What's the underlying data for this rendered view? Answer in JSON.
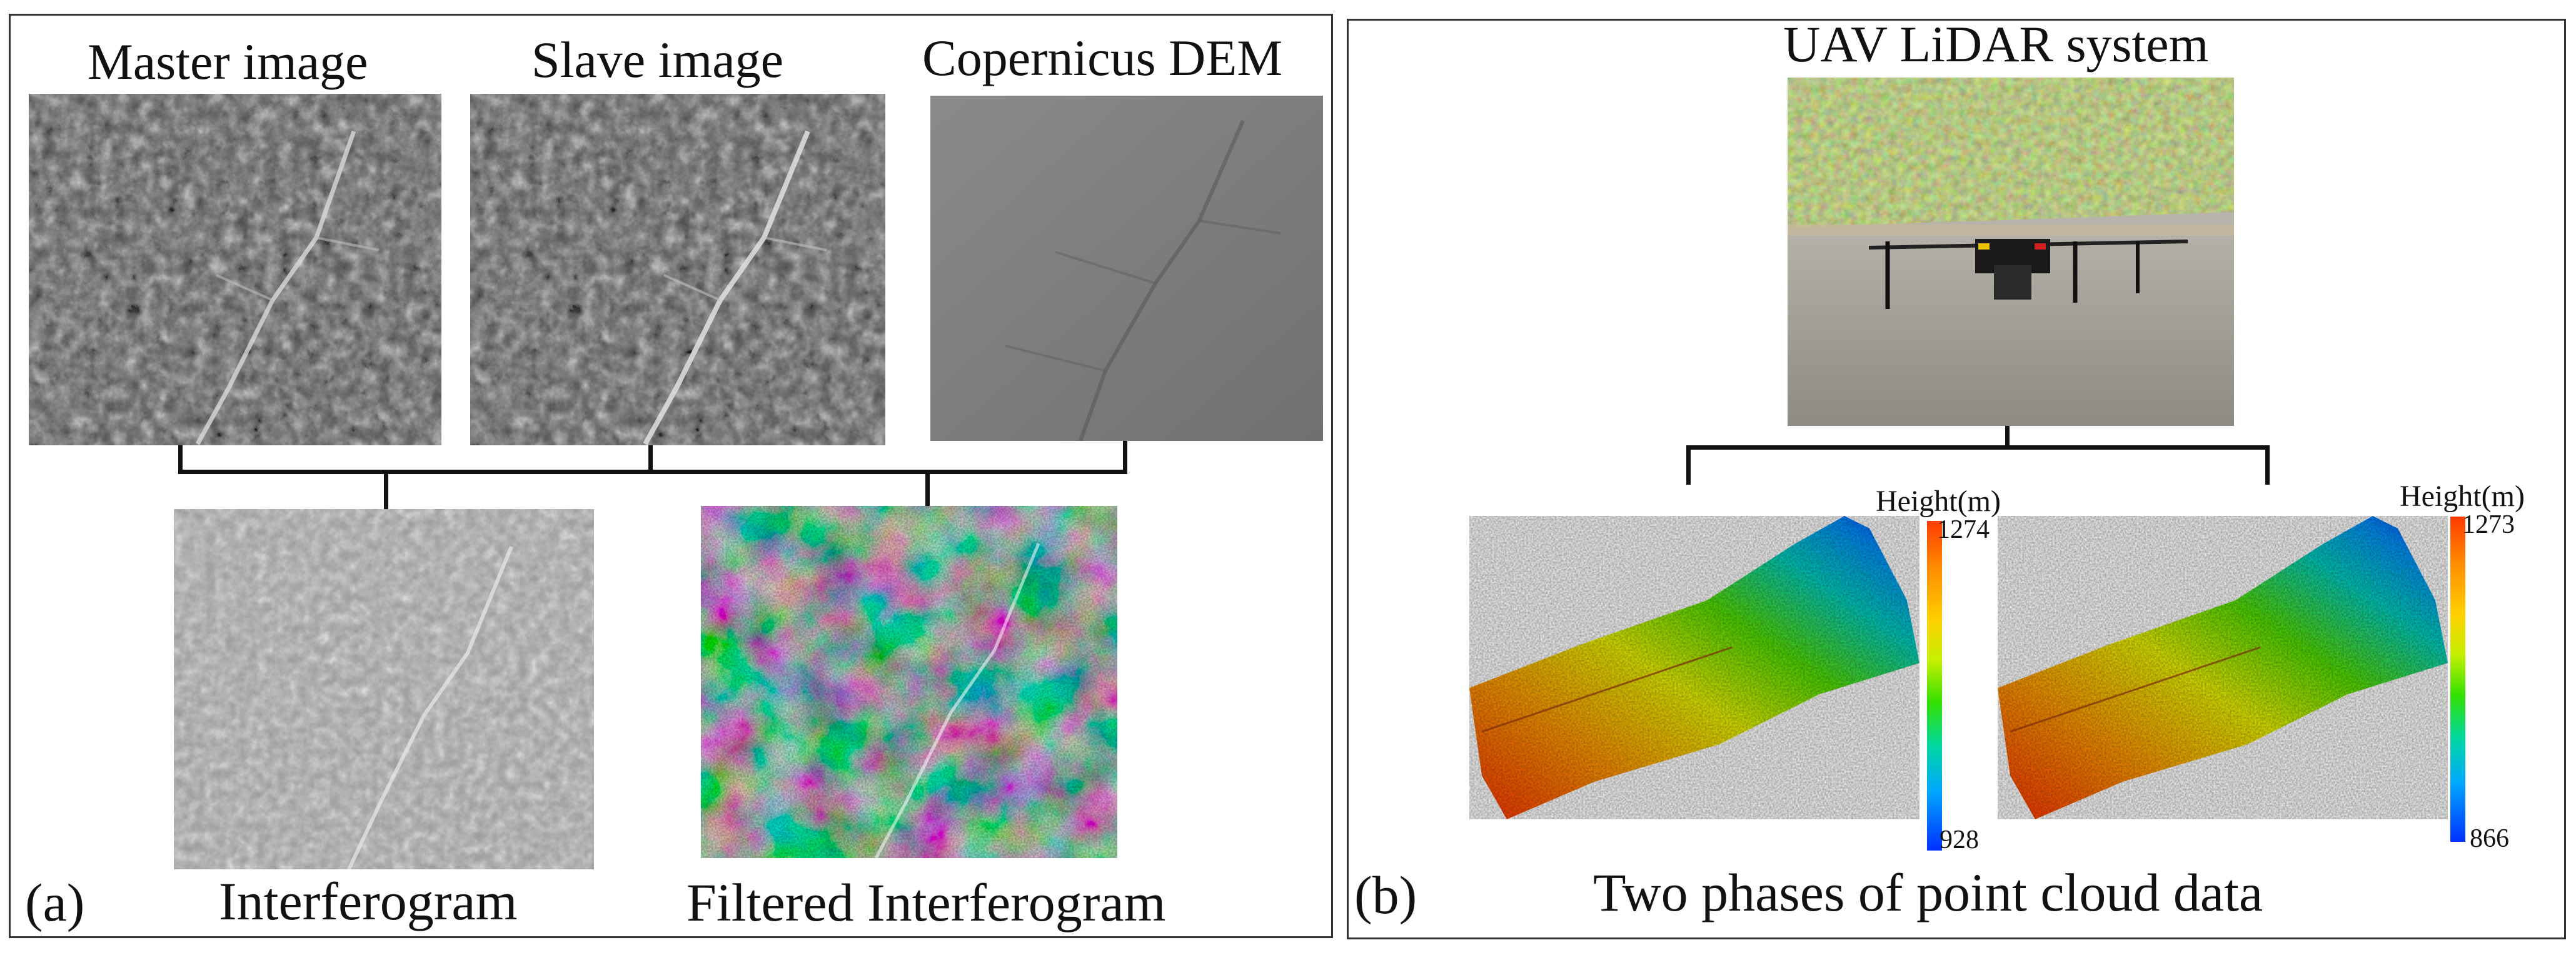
{
  "panel_a": {
    "label": "(a)",
    "master_title": "Master image",
    "slave_title": "Slave image",
    "dem_title": "Copernicus DEM",
    "interferogram_caption": "Interferogram",
    "filtered_caption": "Filtered Interferogram"
  },
  "panel_b": {
    "label": "(b)",
    "uav_title": "UAV LiDAR system",
    "caption": "Two phases of point cloud data",
    "phase1": {
      "height_label": "Height(m)",
      "max": "1274",
      "min": "928"
    },
    "phase2": {
      "height_label": "Height(m)",
      "max": "1273",
      "min": "866"
    }
  },
  "colors": {
    "frame": "#333333",
    "connector": "#111111"
  }
}
